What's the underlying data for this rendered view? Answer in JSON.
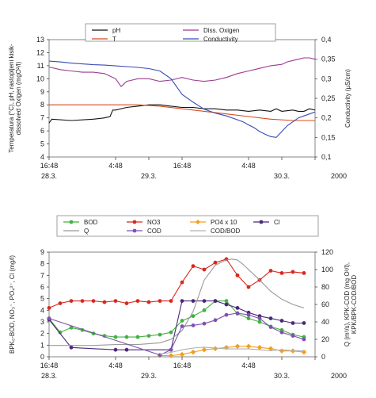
{
  "chart_data": [
    {
      "type": "line",
      "title": "",
      "ylabel_left": "Temperatura (°C), pH, rastopljeni kisik- dissolved Oxigen (mgO²/l)",
      "ylabel_right": "Conductivity (µS/cm)",
      "ylim_left": [
        4,
        13
      ],
      "ylim_right": [
        0.1,
        0.4
      ],
      "yticks_left": [
        "4",
        "5",
        "6",
        "7",
        "8",
        "9",
        "10",
        "11",
        "12",
        "13"
      ],
      "yticks_right": [
        "0,1",
        "0,15",
        "0,2",
        "0,25",
        "0,3",
        "0,35",
        "0,4"
      ],
      "x_range_hours": [
        0,
        48
      ],
      "xticks": [
        {
          "t": 0,
          "time": "16:48",
          "date": "28.3."
        },
        {
          "t": 12,
          "time": "4:48",
          "date": ""
        },
        {
          "t": 18,
          "time": "",
          "date": "29.3."
        },
        {
          "t": 24,
          "time": "16:48",
          "date": ""
        },
        {
          "t": 36,
          "time": "4:48",
          "date": ""
        },
        {
          "t": 42,
          "time": "",
          "date": "30.3."
        },
        {
          "t": 48,
          "time": "",
          "date": ""
        }
      ],
      "x_end_label": "2000",
      "legend": [
        "pH",
        "Diss. Oxigen",
        "T",
        "Conductivity"
      ],
      "series": [
        {
          "name": "pH",
          "axis": "left",
          "color": "#111111",
          "t": [
            0,
            0.5,
            4,
            8,
            10,
            11,
            11.5,
            12,
            14,
            16,
            18,
            20,
            22,
            24,
            26,
            28,
            30,
            32,
            34,
            36,
            38,
            40,
            41,
            42,
            44,
            45,
            46,
            47,
            48
          ],
          "values": [
            6.6,
            6.9,
            6.8,
            6.9,
            7.0,
            7.1,
            7.6,
            7.6,
            7.8,
            7.9,
            8.0,
            8.0,
            7.9,
            7.8,
            7.8,
            7.7,
            7.7,
            7.6,
            7.6,
            7.5,
            7.6,
            7.5,
            7.7,
            7.5,
            7.6,
            7.5,
            7.5,
            7.7,
            7.6
          ]
        },
        {
          "name": "Diss. Oxigen",
          "axis": "left",
          "color": "#9b3a8e",
          "t": [
            0,
            2,
            4,
            6,
            8,
            10,
            12,
            13,
            14,
            15,
            16,
            18,
            20,
            22,
            24,
            26,
            28,
            30,
            32,
            34,
            36,
            38,
            40,
            42,
            43,
            44,
            45,
            46,
            47,
            48
          ],
          "values": [
            10.9,
            10.7,
            10.6,
            10.5,
            10.5,
            10.4,
            10.0,
            9.4,
            9.8,
            9.9,
            10.0,
            10.0,
            9.8,
            9.9,
            10.1,
            9.9,
            9.8,
            9.9,
            10.1,
            10.4,
            10.6,
            10.8,
            11.0,
            11.1,
            11.3,
            11.4,
            11.5,
            11.6,
            11.6,
            11.5
          ]
        },
        {
          "name": "T",
          "axis": "left",
          "color": "#d84b1e",
          "t": [
            0,
            4,
            8,
            12,
            16,
            20,
            24,
            28,
            32,
            36,
            40,
            44,
            46,
            48
          ],
          "values": [
            8.0,
            8.0,
            8.0,
            8.0,
            8.0,
            7.9,
            7.7,
            7.5,
            7.3,
            7.1,
            6.9,
            6.8,
            6.8,
            6.8
          ]
        },
        {
          "name": "Conductivity",
          "axis": "right",
          "color": "#3b4bb3",
          "t": [
            0,
            2,
            4,
            6,
            8,
            10,
            12,
            14,
            16,
            18,
            20,
            22,
            24,
            26,
            28,
            30,
            32,
            34,
            35,
            36,
            37,
            38,
            39,
            40,
            41,
            42,
            43,
            44,
            45,
            46,
            47,
            48
          ],
          "values": [
            0.345,
            0.343,
            0.34,
            0.338,
            0.336,
            0.335,
            0.333,
            0.331,
            0.329,
            0.326,
            0.32,
            0.3,
            0.26,
            0.24,
            0.222,
            0.212,
            0.205,
            0.195,
            0.19,
            0.182,
            0.175,
            0.165,
            0.158,
            0.152,
            0.15,
            0.165,
            0.18,
            0.19,
            0.2,
            0.205,
            0.21,
            0.215
          ]
        }
      ]
    },
    {
      "type": "line",
      "title": "",
      "ylabel_left": "BPK₅-BOD, NO₃⁻, PO₄³⁻, Cl (mg/l)",
      "ylabel_right": "Q (m³/s), KPK-COD (mg O²/l), KPK/BPK-COD/BOD",
      "ylim_left": [
        0,
        9
      ],
      "ylim_right": [
        0,
        120
      ],
      "yticks_left": [
        "0",
        "1",
        "2",
        "3",
        "4",
        "5",
        "6",
        "7",
        "8",
        "9"
      ],
      "yticks_right": [
        "0",
        "20",
        "40",
        "60",
        "80",
        "100",
        "120"
      ],
      "x_range_hours": [
        0,
        48
      ],
      "xticks": [
        {
          "t": 0,
          "time": "16:48",
          "date": "28.3."
        },
        {
          "t": 12,
          "time": "4:48",
          "date": ""
        },
        {
          "t": 18,
          "time": "",
          "date": "29.3."
        },
        {
          "t": 24,
          "time": "16:48",
          "date": ""
        },
        {
          "t": 36,
          "time": "4:48",
          "date": ""
        },
        {
          "t": 42,
          "time": "",
          "date": "30.3."
        },
        {
          "t": 48,
          "time": "",
          "date": ""
        }
      ],
      "x_end_label": "2000",
      "legend": [
        "BOD",
        "NO3",
        "PO4 x 10",
        "Cl",
        "Q",
        "COD",
        "COD/BOD"
      ],
      "series": [
        {
          "name": "BOD",
          "axis": "left",
          "color": "#44b044",
          "marker": "circle",
          "t": [
            0,
            2,
            4,
            6,
            8,
            10,
            12,
            14,
            16,
            18,
            20,
            22,
            24,
            26,
            28,
            30,
            32,
            34,
            36,
            38,
            40,
            42,
            44,
            46
          ],
          "values": [
            3.3,
            2.1,
            2.5,
            2.3,
            2.0,
            1.8,
            1.7,
            1.7,
            1.7,
            1.8,
            1.9,
            2.1,
            3.1,
            3.5,
            4.0,
            4.8,
            4.8,
            3.7,
            3.3,
            3.0,
            2.6,
            2.3,
            1.9,
            1.7
          ]
        },
        {
          "name": "NO3",
          "axis": "left",
          "color": "#d8281e",
          "marker": "circle",
          "t": [
            0,
            2,
            4,
            6,
            8,
            10,
            12,
            14,
            16,
            18,
            20,
            22,
            24,
            26,
            28,
            30,
            32,
            34,
            36,
            38,
            40,
            42,
            44,
            46
          ],
          "values": [
            4.2,
            4.6,
            4.8,
            4.8,
            4.8,
            4.7,
            4.8,
            4.6,
            4.8,
            4.7,
            4.8,
            4.8,
            6.4,
            7.8,
            7.5,
            8.1,
            8.4,
            7.0,
            6.0,
            6.6,
            7.4,
            7.2,
            7.3,
            7.2
          ]
        },
        {
          "name": "PO4 x 10",
          "axis": "left",
          "color": "#f0a020",
          "marker": "diamond",
          "t": [
            20,
            22,
            24,
            26,
            28,
            30,
            32,
            34,
            36,
            38,
            40,
            42,
            44,
            46
          ],
          "values": [
            0.1,
            0.1,
            0.2,
            0.4,
            0.6,
            0.7,
            0.8,
            0.9,
            0.9,
            0.8,
            0.7,
            0.5,
            0.5,
            0.4
          ]
        },
        {
          "name": "Cl",
          "axis": "left",
          "color": "#4b2878",
          "marker": "circle",
          "t": [
            0,
            4,
            12,
            14,
            22,
            24,
            26,
            28,
            30,
            32,
            34,
            36,
            38,
            40,
            42,
            44,
            46
          ],
          "values": [
            3.2,
            0.8,
            0.6,
            0.6,
            0.6,
            4.8,
            4.8,
            4.8,
            4.8,
            4.5,
            4.2,
            3.8,
            3.5,
            3.3,
            3.1,
            2.9,
            2.9
          ]
        },
        {
          "name": "Q",
          "axis": "right",
          "color": "#999999",
          "marker": "none",
          "t": [
            0,
            4,
            8,
            12,
            16,
            20,
            22,
            24,
            26,
            27,
            28,
            30,
            32,
            33,
            34,
            35,
            36,
            38,
            40,
            42,
            44,
            46
          ],
          "values": [
            13,
            13,
            13,
            14,
            14,
            16,
            20,
            30,
            52,
            70,
            88,
            105,
            111,
            112,
            111,
            106,
            100,
            88,
            75,
            66,
            60,
            56
          ]
        },
        {
          "name": "COD",
          "axis": "right",
          "color": "#8050b0",
          "marker": "circle",
          "t": [
            0,
            20,
            22,
            24,
            26,
            28,
            30,
            32,
            34,
            36,
            38,
            40,
            42,
            44,
            46
          ],
          "values": [
            44,
            2,
            8,
            35,
            36,
            38,
            42,
            48,
            50,
            48,
            44,
            34,
            28,
            24,
            20
          ]
        },
        {
          "name": "COD/BOD",
          "axis": "right",
          "color": "#b0b0b0",
          "marker": "none",
          "t": [
            20,
            22,
            24,
            26,
            28,
            30,
            32,
            34,
            36,
            38,
            40,
            42,
            44,
            46
          ],
          "values": [
            3,
            5,
            8,
            10,
            11,
            10,
            9,
            9,
            9,
            8,
            7,
            8,
            7,
            7
          ]
        }
      ]
    }
  ]
}
